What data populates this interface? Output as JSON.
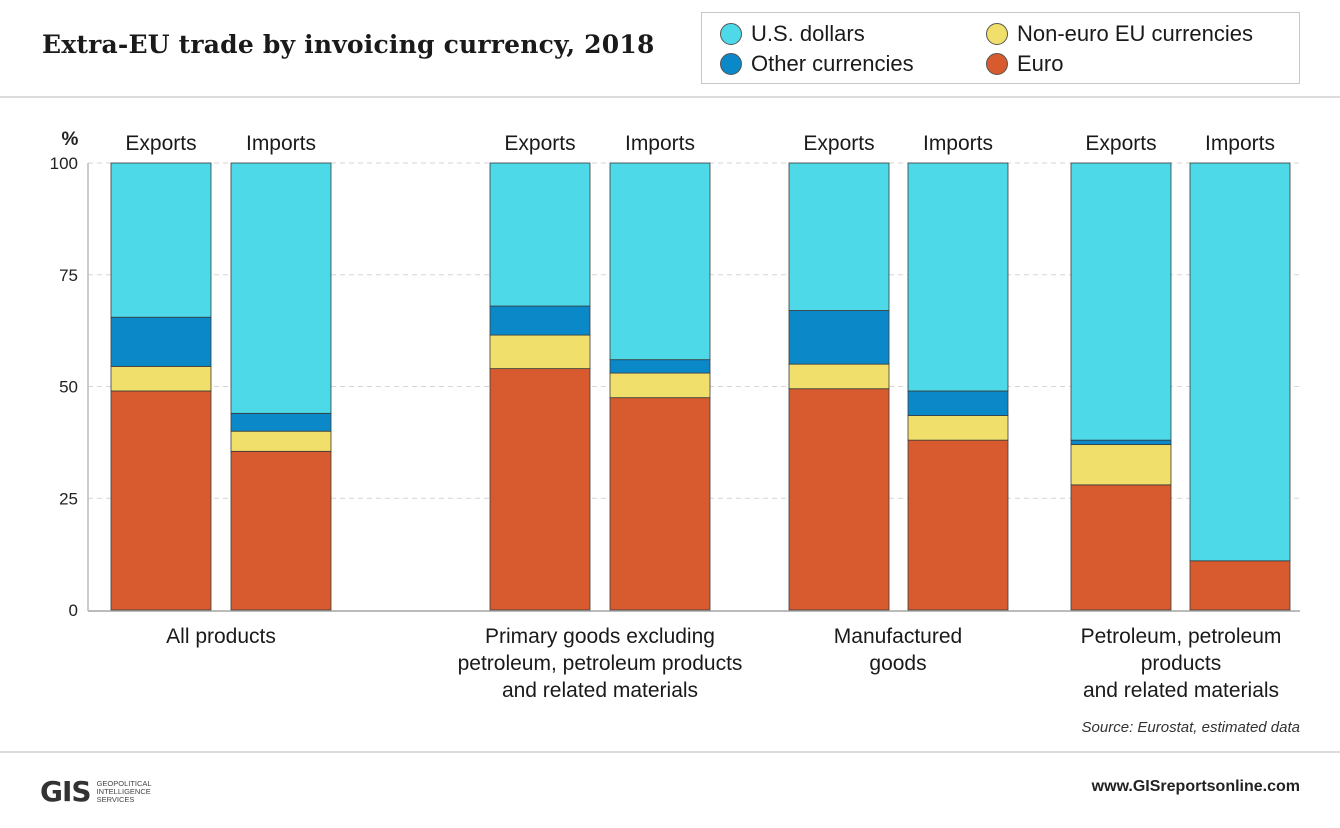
{
  "title": "Extra-EU trade by invoicing currency, 2018",
  "legend": [
    {
      "label": "U.S. dollars",
      "color": "#4dd9e8"
    },
    {
      "label": "Non-euro EU currencies",
      "color": "#f0df6a"
    },
    {
      "label": "Other currencies",
      "color": "#0a88c8"
    },
    {
      "label": "Euro",
      "color": "#d75b2e"
    }
  ],
  "chart_data": {
    "type": "bar",
    "stacked": true,
    "title": "Extra-EU trade by invoicing currency, 2018",
    "ylabel": "%",
    "ylim": [
      0,
      100
    ],
    "yticks": [
      0,
      25,
      50,
      75,
      100
    ],
    "groups": [
      {
        "label": "All products",
        "label_lines": [
          "All products"
        ],
        "bars": [
          {
            "label": "Exports",
            "euro": 49,
            "non_euro_eu": 5.5,
            "other": 11,
            "usd": 34.5
          },
          {
            "label": "Imports",
            "euro": 35.5,
            "non_euro_eu": 4.5,
            "other": 4,
            "usd": 56
          }
        ]
      },
      {
        "label": "Primary goods excluding petroleum, petroleum products and related materials",
        "label_lines": [
          "Primary goods excluding",
          "petroleum, petroleum products",
          "and related materials"
        ],
        "bars": [
          {
            "label": "Exports",
            "euro": 54,
            "non_euro_eu": 7.5,
            "other": 6.5,
            "usd": 32
          },
          {
            "label": "Imports",
            "euro": 47.5,
            "non_euro_eu": 5.5,
            "other": 3,
            "usd": 44
          }
        ]
      },
      {
        "label": "Manufactured goods",
        "label_lines": [
          "Manufactured",
          "goods"
        ],
        "bars": [
          {
            "label": "Exports",
            "euro": 49.5,
            "non_euro_eu": 5.5,
            "other": 12,
            "usd": 33
          },
          {
            "label": "Imports",
            "euro": 38,
            "non_euro_eu": 5.5,
            "other": 5.5,
            "usd": 51
          }
        ]
      },
      {
        "label": "Petroleum, petroleum products and related materials",
        "label_lines": [
          "Petroleum, petroleum",
          "products",
          "and related materials"
        ],
        "bars": [
          {
            "label": "Exports",
            "euro": 28,
            "non_euro_eu": 9,
            "other": 1,
            "usd": 62
          },
          {
            "label": "Imports",
            "euro": 11,
            "non_euro_eu": 0,
            "other": 0,
            "usd": 89
          }
        ]
      }
    ],
    "stack_order": [
      "euro",
      "non_euro_eu",
      "other",
      "usd"
    ],
    "legend_position": "top-right"
  },
  "source": "Source: Eurostat, estimated data",
  "footer": {
    "url": "www.GISreportsonline.com",
    "logo_text": "GIS",
    "logo_sub": [
      "GEOPOLITICAL",
      "INTELLIGENCE",
      "SERVICES"
    ]
  }
}
